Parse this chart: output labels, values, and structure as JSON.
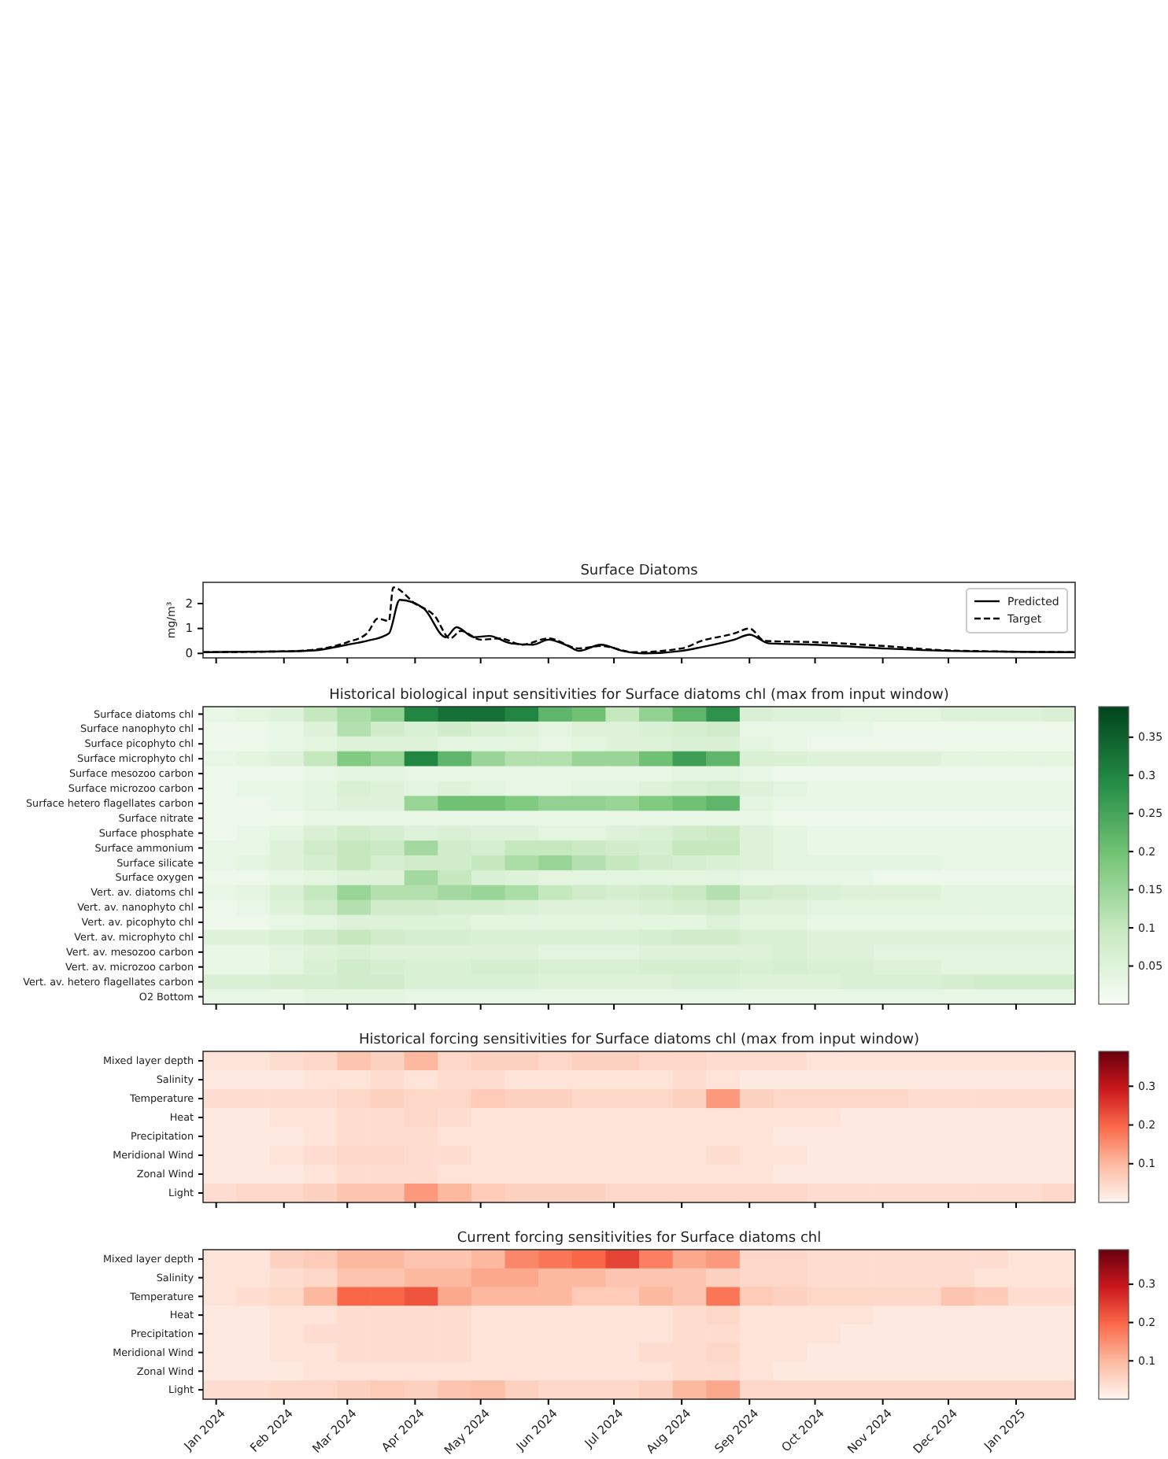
{
  "chart_data": [
    {
      "type": "line",
      "title": "Surface Diatoms",
      "ylabel": "mg/m³",
      "legend": "top right",
      "tick_labels": "y",
      "grid": false,
      "xlim": [
        "2023-12-26",
        "2025-01-28"
      ],
      "ylim": [
        -0.18,
        2.85
      ],
      "yticks": [
        0,
        1,
        2
      ],
      "xticks": [
        {
          "value": "2024-01-01",
          "label": null
        },
        {
          "value": "2024-02-01",
          "label": null
        },
        {
          "value": "2024-03-01",
          "label": null
        },
        {
          "value": "2024-04-01",
          "label": null
        },
        {
          "value": "2024-05-01",
          "label": null
        },
        {
          "value": "2024-06-01",
          "label": null
        },
        {
          "value": "2024-07-01",
          "label": null
        },
        {
          "value": "2024-08-01",
          "label": null
        },
        {
          "value": "2024-09-01",
          "label": null
        },
        {
          "value": "2024-10-01",
          "label": null
        },
        {
          "value": "2024-11-01",
          "label": null
        },
        {
          "value": "2024-12-01",
          "label": null
        },
        {
          "value": "2025-01-01",
          "label": null
        }
      ],
      "series": [
        {
          "name": "Predicted",
          "color": "#000000",
          "line_style": "solid",
          "x": [
            "2023-12-26",
            "2024-02-01",
            "2024-02-15",
            "2024-03-01",
            "2024-03-10",
            "2024-03-20",
            "2024-03-25",
            "2024-04-05",
            "2024-04-15",
            "2024-04-20",
            "2024-04-28",
            "2024-05-05",
            "2024-05-15",
            "2024-05-25",
            "2024-06-01",
            "2024-06-10",
            "2024-06-15",
            "2024-06-25",
            "2024-07-05",
            "2024-07-15",
            "2024-08-01",
            "2024-08-10",
            "2024-08-25",
            "2024-09-01",
            "2024-09-10",
            "2024-10-01",
            "2024-11-01",
            "2024-12-01",
            "2025-01-28"
          ],
          "values": [
            0.05,
            0.08,
            0.12,
            0.35,
            0.5,
            0.8,
            2.15,
            1.8,
            0.65,
            1.05,
            0.65,
            0.7,
            0.4,
            0.35,
            0.55,
            0.3,
            0.1,
            0.35,
            0.1,
            0.0,
            0.1,
            0.25,
            0.55,
            0.75,
            0.4,
            0.35,
            0.2,
            0.1,
            0.05
          ]
        },
        {
          "name": "Target",
          "color": "#000000",
          "line_style": "dashed",
          "x": [
            "2023-12-26",
            "2024-02-01",
            "2024-02-15",
            "2024-03-01",
            "2024-03-10",
            "2024-03-15",
            "2024-03-20",
            "2024-03-22",
            "2024-04-01",
            "2024-04-10",
            "2024-04-17",
            "2024-04-22",
            "2024-05-01",
            "2024-05-10",
            "2024-05-20",
            "2024-06-01",
            "2024-06-15",
            "2024-06-25",
            "2024-07-10",
            "2024-08-01",
            "2024-08-10",
            "2024-08-25",
            "2024-09-01",
            "2024-09-08",
            "2024-10-01",
            "2024-11-01",
            "2024-12-01",
            "2025-01-28"
          ],
          "values": [
            0.05,
            0.08,
            0.15,
            0.45,
            0.8,
            1.4,
            1.3,
            2.65,
            2.0,
            1.5,
            0.6,
            0.9,
            0.55,
            0.6,
            0.35,
            0.6,
            0.2,
            0.3,
            0.05,
            0.2,
            0.5,
            0.8,
            1.0,
            0.5,
            0.45,
            0.3,
            0.12,
            0.05
          ]
        }
      ]
    },
    {
      "type": "heatmap",
      "title": "Historical biological input sensitivities for Surface diatoms chl (max from input window)",
      "tick_labels": "y",
      "xlim": [
        "2023-12-26",
        "2025-01-28"
      ],
      "xticks": [
        {
          "value": "2024-01-01",
          "label": null
        },
        {
          "value": "2024-02-01",
          "label": null
        },
        {
          "value": "2024-03-01",
          "label": null
        },
        {
          "value": "2024-04-01",
          "label": null
        },
        {
          "value": "2024-05-01",
          "label": null
        },
        {
          "value": "2024-06-01",
          "label": null
        },
        {
          "value": "2024-07-01",
          "label": null
        },
        {
          "value": "2024-08-01",
          "label": null
        },
        {
          "value": "2024-09-01",
          "label": null
        },
        {
          "value": "2024-10-01",
          "label": null
        },
        {
          "value": "2024-11-01",
          "label": null
        },
        {
          "value": "2024-12-01",
          "label": null
        },
        {
          "value": "2025-01-01",
          "label": null
        }
      ],
      "x": [
        "2024-01-02T16:09",
        "2024-01-18T00:27",
        "2024-02-02T08:46",
        "2024-02-17T17:04",
        "2024-03-04T01:23",
        "2024-03-19T09:41",
        "2024-04-03T18:00",
        "2024-04-19T02:18",
        "2024-05-04T10:37",
        "2024-05-19T18:55",
        "2024-06-04T03:14",
        "2024-06-19T11:32",
        "2024-07-04T19:51",
        "2024-07-20T04:09",
        "2024-08-04T12:27",
        "2024-08-19T20:46",
        "2024-09-04T05:04",
        "2024-09-19T13:23",
        "2024-10-04T21:41",
        "2024-10-20T06:00",
        "2024-11-04T14:18",
        "2024-11-19T22:37",
        "2024-12-05T06:55",
        "2024-12-20T15:14",
        "2025-01-04T23:32",
        "2025-01-20T07:51"
      ],
      "y_categories": [
        "Surface diatoms chl",
        "Surface nanophyto chl",
        "Surface picophyto chl",
        "Surface microphyto chl",
        "Surface mesozoo carbon",
        "Surface microzoo carbon",
        "Surface hetero flagellates carbon",
        "Surface nitrate",
        "Surface phosphate",
        "Surface ammonium",
        "Surface silicate",
        "Surface oxygen",
        "Vert. av. diatoms chl",
        "Vert. av. nanophyto chl",
        "Vert. av. picophyto chl",
        "Vert. av. microphyto chl",
        "Vert. av. mesozoo carbon",
        "Vert. av. microzoo carbon",
        "Vert. av. hetero flagellates carbon",
        "O2 Bottom"
      ],
      "colors": [
        "#f7fcf5",
        "#c7e9c0",
        "#74c476",
        "#238b45",
        "#00441b"
      ],
      "clim": [
        0,
        0.39
      ],
      "cticks": [
        0.05,
        0.1,
        0.15,
        0.2,
        0.25,
        0.3,
        0.35
      ],
      "cells": [
        [
          0.03,
          0.04,
          0.05,
          0.1,
          0.13,
          0.16,
          0.3,
          0.33,
          0.33,
          0.3,
          0.22,
          0.2,
          0.1,
          0.16,
          0.22,
          0.28,
          0.06,
          0.05,
          0.05,
          0.04,
          0.04,
          0.04,
          0.05,
          0.05,
          0.05,
          0.06
        ],
        [
          0.02,
          0.02,
          0.03,
          0.05,
          0.12,
          0.08,
          0.06,
          0.08,
          0.06,
          0.05,
          0.04,
          0.05,
          0.05,
          0.06,
          0.07,
          0.08,
          0.03,
          0.03,
          0.03,
          0.03,
          0.02,
          0.02,
          0.02,
          0.02,
          0.02,
          0.02
        ],
        [
          0.02,
          0.02,
          0.03,
          0.04,
          0.05,
          0.05,
          0.05,
          0.04,
          0.04,
          0.04,
          0.03,
          0.04,
          0.05,
          0.05,
          0.06,
          0.06,
          0.04,
          0.03,
          0.02,
          0.02,
          0.02,
          0.02,
          0.02,
          0.02,
          0.02,
          0.02
        ],
        [
          0.03,
          0.04,
          0.05,
          0.1,
          0.18,
          0.15,
          0.3,
          0.22,
          0.15,
          0.12,
          0.12,
          0.15,
          0.15,
          0.2,
          0.26,
          0.22,
          0.06,
          0.06,
          0.05,
          0.05,
          0.05,
          0.05,
          0.04,
          0.04,
          0.04,
          0.04
        ],
        [
          0.02,
          0.02,
          0.02,
          0.03,
          0.04,
          0.04,
          0.03,
          0.03,
          0.03,
          0.03,
          0.03,
          0.03,
          0.03,
          0.03,
          0.04,
          0.04,
          0.03,
          0.02,
          0.02,
          0.02,
          0.02,
          0.02,
          0.02,
          0.02,
          0.02,
          0.02
        ],
        [
          0.02,
          0.03,
          0.03,
          0.04,
          0.06,
          0.05,
          0.04,
          0.05,
          0.04,
          0.03,
          0.03,
          0.04,
          0.04,
          0.05,
          0.06,
          0.07,
          0.05,
          0.04,
          0.03,
          0.03,
          0.03,
          0.03,
          0.03,
          0.03,
          0.03,
          0.03
        ],
        [
          0.02,
          0.02,
          0.03,
          0.04,
          0.05,
          0.05,
          0.15,
          0.2,
          0.2,
          0.18,
          0.16,
          0.16,
          0.15,
          0.18,
          0.2,
          0.22,
          0.04,
          0.03,
          0.03,
          0.03,
          0.03,
          0.03,
          0.03,
          0.03,
          0.03,
          0.03
        ],
        [
          0.02,
          0.02,
          0.02,
          0.03,
          0.03,
          0.03,
          0.03,
          0.03,
          0.03,
          0.03,
          0.03,
          0.03,
          0.03,
          0.03,
          0.03,
          0.03,
          0.03,
          0.02,
          0.02,
          0.02,
          0.02,
          0.02,
          0.02,
          0.02,
          0.02,
          0.02
        ],
        [
          0.02,
          0.03,
          0.04,
          0.06,
          0.08,
          0.07,
          0.05,
          0.06,
          0.05,
          0.05,
          0.04,
          0.04,
          0.05,
          0.06,
          0.08,
          0.09,
          0.05,
          0.04,
          0.03,
          0.03,
          0.03,
          0.03,
          0.03,
          0.03,
          0.03,
          0.03
        ],
        [
          0.03,
          0.03,
          0.05,
          0.08,
          0.1,
          0.09,
          0.14,
          0.08,
          0.07,
          0.1,
          0.1,
          0.09,
          0.08,
          0.07,
          0.1,
          0.1,
          0.05,
          0.04,
          0.03,
          0.03,
          0.03,
          0.03,
          0.03,
          0.03,
          0.03,
          0.03
        ],
        [
          0.03,
          0.04,
          0.05,
          0.07,
          0.1,
          0.07,
          0.08,
          0.08,
          0.1,
          0.13,
          0.15,
          0.12,
          0.1,
          0.08,
          0.07,
          0.06,
          0.05,
          0.04,
          0.04,
          0.04,
          0.04,
          0.04,
          0.03,
          0.03,
          0.03,
          0.03
        ],
        [
          0.02,
          0.02,
          0.03,
          0.04,
          0.05,
          0.05,
          0.14,
          0.1,
          0.06,
          0.05,
          0.04,
          0.04,
          0.04,
          0.04,
          0.04,
          0.04,
          0.03,
          0.03,
          0.03,
          0.03,
          0.02,
          0.02,
          0.02,
          0.02,
          0.02,
          0.02
        ],
        [
          0.03,
          0.04,
          0.06,
          0.1,
          0.15,
          0.12,
          0.12,
          0.14,
          0.15,
          0.13,
          0.1,
          0.08,
          0.07,
          0.08,
          0.09,
          0.12,
          0.08,
          0.07,
          0.06,
          0.05,
          0.05,
          0.05,
          0.04,
          0.04,
          0.04,
          0.04
        ],
        [
          0.02,
          0.03,
          0.05,
          0.08,
          0.12,
          0.08,
          0.08,
          0.07,
          0.07,
          0.06,
          0.05,
          0.05,
          0.05,
          0.06,
          0.07,
          0.08,
          0.05,
          0.05,
          0.04,
          0.04,
          0.04,
          0.04,
          0.04,
          0.04,
          0.04,
          0.04
        ],
        [
          0.02,
          0.02,
          0.03,
          0.04,
          0.05,
          0.05,
          0.05,
          0.05,
          0.04,
          0.04,
          0.04,
          0.04,
          0.04,
          0.04,
          0.04,
          0.05,
          0.04,
          0.04,
          0.03,
          0.03,
          0.03,
          0.03,
          0.03,
          0.03,
          0.03,
          0.03
        ],
        [
          0.05,
          0.05,
          0.06,
          0.08,
          0.1,
          0.08,
          0.07,
          0.07,
          0.06,
          0.06,
          0.06,
          0.06,
          0.06,
          0.07,
          0.08,
          0.08,
          0.06,
          0.06,
          0.05,
          0.05,
          0.05,
          0.05,
          0.05,
          0.05,
          0.05,
          0.05
        ],
        [
          0.03,
          0.03,
          0.04,
          0.05,
          0.06,
          0.05,
          0.05,
          0.05,
          0.05,
          0.05,
          0.04,
          0.04,
          0.04,
          0.05,
          0.05,
          0.05,
          0.05,
          0.06,
          0.05,
          0.05,
          0.04,
          0.04,
          0.04,
          0.04,
          0.04,
          0.04
        ],
        [
          0.03,
          0.03,
          0.04,
          0.06,
          0.08,
          0.07,
          0.06,
          0.06,
          0.07,
          0.07,
          0.06,
          0.06,
          0.06,
          0.07,
          0.07,
          0.07,
          0.06,
          0.07,
          0.06,
          0.06,
          0.05,
          0.05,
          0.04,
          0.04,
          0.04,
          0.04
        ],
        [
          0.06,
          0.06,
          0.07,
          0.07,
          0.08,
          0.08,
          0.06,
          0.06,
          0.06,
          0.06,
          0.05,
          0.05,
          0.05,
          0.05,
          0.06,
          0.06,
          0.05,
          0.05,
          0.05,
          0.06,
          0.06,
          0.06,
          0.07,
          0.08,
          0.08,
          0.08
        ],
        [
          0.03,
          0.03,
          0.03,
          0.04,
          0.04,
          0.04,
          0.03,
          0.03,
          0.03,
          0.03,
          0.03,
          0.03,
          0.03,
          0.03,
          0.03,
          0.03,
          0.03,
          0.03,
          0.03,
          0.03,
          0.03,
          0.03,
          0.03,
          0.03,
          0.03,
          0.03
        ]
      ]
    },
    {
      "type": "heatmap",
      "title": "Historical forcing sensitivities for Surface diatoms chl (max from input window)",
      "tick_labels": "y",
      "xlim": [
        "2023-12-26",
        "2025-01-28"
      ],
      "xticks": [
        {
          "value": "2024-01-01",
          "label": null
        },
        {
          "value": "2024-02-01",
          "label": null
        },
        {
          "value": "2024-03-01",
          "label": null
        },
        {
          "value": "2024-04-01",
          "label": null
        },
        {
          "value": "2024-05-01",
          "label": null
        },
        {
          "value": "2024-06-01",
          "label": null
        },
        {
          "value": "2024-07-01",
          "label": null
        },
        {
          "value": "2024-08-01",
          "label": null
        },
        {
          "value": "2024-09-01",
          "label": null
        },
        {
          "value": "2024-10-01",
          "label": null
        },
        {
          "value": "2024-11-01",
          "label": null
        },
        {
          "value": "2024-12-01",
          "label": null
        },
        {
          "value": "2025-01-01",
          "label": null
        }
      ],
      "x": [
        "2024-01-02T16:09",
        "2024-01-18T00:27",
        "2024-02-02T08:46",
        "2024-02-17T17:04",
        "2024-03-04T01:23",
        "2024-03-19T09:41",
        "2024-04-03T18:00",
        "2024-04-19T02:18",
        "2024-05-04T10:37",
        "2024-05-19T18:55",
        "2024-06-04T03:14",
        "2024-06-19T11:32",
        "2024-07-04T19:51",
        "2024-07-20T04:09",
        "2024-08-04T12:27",
        "2024-08-19T20:46",
        "2024-09-04T05:04",
        "2024-09-19T13:23",
        "2024-10-04T21:41",
        "2024-10-20T06:00",
        "2024-11-04T14:18",
        "2024-11-19T22:37",
        "2024-12-05T06:55",
        "2024-12-20T15:14",
        "2025-01-04T23:32",
        "2025-01-20T07:51"
      ],
      "y_categories": [
        "Mixed layer depth",
        "Salinity",
        "Temperature",
        "Heat",
        "Precipitation",
        "Meridional Wind",
        "Zonal Wind",
        "Light"
      ],
      "colors": [
        "#fff5f0",
        "#fcbba1",
        "#fb6a4a",
        "#cb181d",
        "#67000d"
      ],
      "clim": [
        0,
        0.39
      ],
      "cticks": [
        0.1,
        0.2,
        0.3
      ],
      "cells": [
        [
          0.03,
          0.03,
          0.04,
          0.05,
          0.08,
          0.06,
          0.1,
          0.05,
          0.06,
          0.06,
          0.05,
          0.06,
          0.06,
          0.05,
          0.05,
          0.04,
          0.04,
          0.04,
          0.03,
          0.03,
          0.03,
          0.03,
          0.03,
          0.03,
          0.03,
          0.03
        ],
        [
          0.02,
          0.02,
          0.02,
          0.03,
          0.03,
          0.04,
          0.03,
          0.04,
          0.04,
          0.03,
          0.03,
          0.03,
          0.03,
          0.03,
          0.04,
          0.03,
          0.02,
          0.02,
          0.02,
          0.02,
          0.02,
          0.02,
          0.02,
          0.02,
          0.02,
          0.02
        ],
        [
          0.04,
          0.04,
          0.04,
          0.04,
          0.05,
          0.06,
          0.05,
          0.05,
          0.07,
          0.06,
          0.06,
          0.05,
          0.05,
          0.05,
          0.06,
          0.14,
          0.06,
          0.05,
          0.05,
          0.05,
          0.05,
          0.04,
          0.04,
          0.04,
          0.04,
          0.04
        ],
        [
          0.02,
          0.02,
          0.03,
          0.03,
          0.04,
          0.04,
          0.05,
          0.04,
          0.03,
          0.03,
          0.03,
          0.03,
          0.03,
          0.03,
          0.03,
          0.03,
          0.03,
          0.03,
          0.03,
          0.02,
          0.02,
          0.02,
          0.02,
          0.02,
          0.02,
          0.02
        ],
        [
          0.02,
          0.02,
          0.02,
          0.03,
          0.04,
          0.04,
          0.04,
          0.03,
          0.03,
          0.03,
          0.03,
          0.03,
          0.03,
          0.03,
          0.03,
          0.03,
          0.03,
          0.02,
          0.02,
          0.02,
          0.02,
          0.02,
          0.02,
          0.02,
          0.02,
          0.02
        ],
        [
          0.02,
          0.02,
          0.03,
          0.04,
          0.05,
          0.05,
          0.04,
          0.04,
          0.03,
          0.03,
          0.03,
          0.03,
          0.03,
          0.03,
          0.03,
          0.04,
          0.03,
          0.03,
          0.02,
          0.02,
          0.02,
          0.02,
          0.02,
          0.02,
          0.02,
          0.02
        ],
        [
          0.02,
          0.02,
          0.02,
          0.03,
          0.04,
          0.04,
          0.04,
          0.03,
          0.03,
          0.03,
          0.03,
          0.03,
          0.03,
          0.03,
          0.03,
          0.03,
          0.03,
          0.02,
          0.02,
          0.02,
          0.02,
          0.02,
          0.02,
          0.02,
          0.02,
          0.02
        ],
        [
          0.04,
          0.05,
          0.05,
          0.06,
          0.08,
          0.08,
          0.14,
          0.1,
          0.07,
          0.06,
          0.06,
          0.06,
          0.05,
          0.05,
          0.05,
          0.05,
          0.05,
          0.05,
          0.04,
          0.04,
          0.04,
          0.04,
          0.04,
          0.04,
          0.04,
          0.05
        ]
      ]
    },
    {
      "type": "heatmap",
      "title": "Current forcing sensitivities for Surface diatoms chl",
      "xlim": [
        "2023-12-26",
        "2025-01-28"
      ],
      "xticks": [
        {
          "value": "2024-01-01",
          "label": "Jan 2024"
        },
        {
          "value": "2024-02-01",
          "label": "Feb 2024"
        },
        {
          "value": "2024-03-01",
          "label": "Mar 2024"
        },
        {
          "value": "2024-04-01",
          "label": "Apr 2024"
        },
        {
          "value": "2024-05-01",
          "label": "May 2024"
        },
        {
          "value": "2024-06-01",
          "label": "Jun 2024"
        },
        {
          "value": "2024-07-01",
          "label": "Jul 2024"
        },
        {
          "value": "2024-08-01",
          "label": "Aug 2024"
        },
        {
          "value": "2024-09-01",
          "label": "Sep 2024"
        },
        {
          "value": "2024-10-01",
          "label": "Oct 2024"
        },
        {
          "value": "2024-11-01",
          "label": "Nov 2024"
        },
        {
          "value": "2024-12-01",
          "label": "Dec 2024"
        },
        {
          "value": "2025-01-01",
          "label": "Jan 2025"
        }
      ],
      "x": [
        "2024-01-02T16:09",
        "2024-01-18T00:27",
        "2024-02-02T08:46",
        "2024-02-17T17:04",
        "2024-03-04T01:23",
        "2024-03-19T09:41",
        "2024-04-03T18:00",
        "2024-04-19T02:18",
        "2024-05-04T10:37",
        "2024-05-19T18:55",
        "2024-06-04T03:14",
        "2024-06-19T11:32",
        "2024-07-04T19:51",
        "2024-07-20T04:09",
        "2024-08-04T12:27",
        "2024-08-19T20:46",
        "2024-09-04T05:04",
        "2024-09-19T13:23",
        "2024-10-04T21:41",
        "2024-10-20T06:00",
        "2024-11-04T14:18",
        "2024-11-19T22:37",
        "2024-12-05T06:55",
        "2024-12-20T15:14",
        "2025-01-04T23:32",
        "2025-01-20T07:51"
      ],
      "y_categories": [
        "Mixed layer depth",
        "Salinity",
        "Temperature",
        "Heat",
        "Precipitation",
        "Meridional Wind",
        "Zonal Wind",
        "Light"
      ],
      "colors": [
        "#fff5f0",
        "#fcbba1",
        "#fb6a4a",
        "#cb181d",
        "#67000d"
      ],
      "clim": [
        0,
        0.39
      ],
      "cticks": [
        0.1,
        0.2,
        0.3
      ],
      "cells": [
        [
          0.03,
          0.03,
          0.06,
          0.07,
          0.1,
          0.1,
          0.08,
          0.08,
          0.1,
          0.16,
          0.18,
          0.2,
          0.24,
          0.17,
          0.12,
          0.14,
          0.05,
          0.05,
          0.04,
          0.04,
          0.04,
          0.04,
          0.04,
          0.04,
          0.03,
          0.03
        ],
        [
          0.03,
          0.03,
          0.04,
          0.05,
          0.08,
          0.08,
          0.1,
          0.1,
          0.12,
          0.12,
          0.1,
          0.1,
          0.08,
          0.08,
          0.08,
          0.06,
          0.05,
          0.05,
          0.04,
          0.04,
          0.04,
          0.04,
          0.04,
          0.03,
          0.03,
          0.03
        ],
        [
          0.03,
          0.04,
          0.05,
          0.1,
          0.2,
          0.2,
          0.22,
          0.12,
          0.1,
          0.1,
          0.1,
          0.07,
          0.07,
          0.1,
          0.08,
          0.18,
          0.07,
          0.06,
          0.05,
          0.05,
          0.05,
          0.05,
          0.08,
          0.07,
          0.04,
          0.04
        ],
        [
          0.02,
          0.02,
          0.03,
          0.03,
          0.04,
          0.04,
          0.04,
          0.04,
          0.03,
          0.03,
          0.03,
          0.03,
          0.03,
          0.03,
          0.04,
          0.05,
          0.03,
          0.03,
          0.03,
          0.03,
          0.02,
          0.02,
          0.02,
          0.02,
          0.02,
          0.02
        ],
        [
          0.02,
          0.02,
          0.03,
          0.04,
          0.04,
          0.04,
          0.04,
          0.04,
          0.03,
          0.03,
          0.03,
          0.03,
          0.03,
          0.03,
          0.04,
          0.04,
          0.03,
          0.03,
          0.03,
          0.02,
          0.02,
          0.02,
          0.02,
          0.02,
          0.02,
          0.02
        ],
        [
          0.02,
          0.02,
          0.03,
          0.03,
          0.04,
          0.04,
          0.04,
          0.04,
          0.03,
          0.03,
          0.03,
          0.03,
          0.03,
          0.04,
          0.04,
          0.05,
          0.03,
          0.03,
          0.02,
          0.02,
          0.02,
          0.02,
          0.02,
          0.02,
          0.02,
          0.02
        ],
        [
          0.02,
          0.02,
          0.02,
          0.03,
          0.03,
          0.03,
          0.03,
          0.03,
          0.03,
          0.03,
          0.03,
          0.03,
          0.03,
          0.03,
          0.04,
          0.04,
          0.03,
          0.02,
          0.02,
          0.02,
          0.02,
          0.02,
          0.02,
          0.02,
          0.02,
          0.02
        ],
        [
          0.04,
          0.04,
          0.05,
          0.05,
          0.06,
          0.07,
          0.06,
          0.08,
          0.09,
          0.06,
          0.05,
          0.05,
          0.05,
          0.06,
          0.1,
          0.12,
          0.05,
          0.05,
          0.05,
          0.05,
          0.05,
          0.05,
          0.05,
          0.05,
          0.05,
          0.05
        ]
      ]
    }
  ]
}
